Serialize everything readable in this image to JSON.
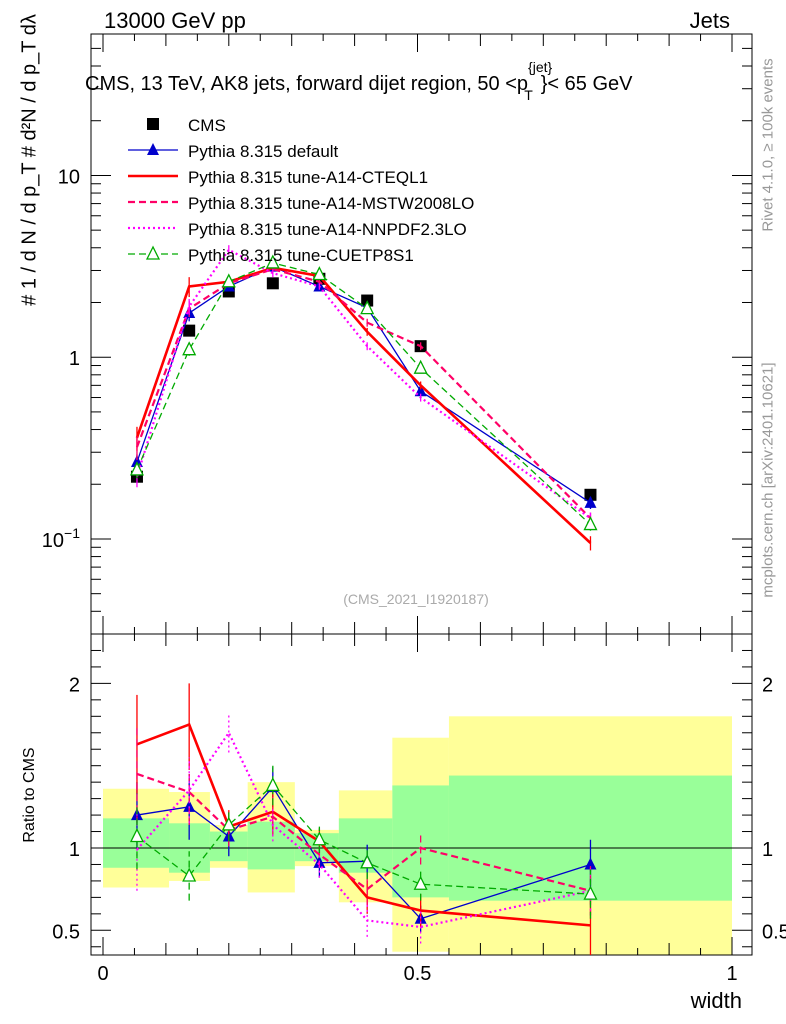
{
  "header": {
    "left": "13000 GeV pp",
    "right": "Jets"
  },
  "side_labels": {
    "rivet": "Rivet 4.1.0, ≥ 100k events",
    "mcplots": "mcplots.cern.ch [arXiv:2401.10621]"
  },
  "y_label_top": "#   1 / d N / d p_T   # d²N / d p_T dλ",
  "chart_data": {
    "type": "line",
    "title": "CMS, 13 TeV, AK8 jets, forward dijet region, 50 <p_T^{jet}< 65 GeV",
    "title_main": "CMS, 13 TeV, AK8 jets, forward dijet region, 50 <p",
    "title_sup": "{jet}",
    "title_sub": "T",
    "title_end": "}< 65 GeV",
    "analysis_id": "(CMS_2021_I1920187)",
    "xlabel": "width",
    "xlim": [
      0,
      1
    ],
    "ylim": [
      0.03,
      60
    ],
    "yscale": "log",
    "x_ticks": [
      {
        "v": 0,
        "label": "0"
      },
      {
        "v": 0.5,
        "label": "0.5"
      },
      {
        "v": 1,
        "label": "1"
      }
    ],
    "y_ticks": [
      {
        "v": 0.1,
        "base": "10",
        "exp": "−1"
      },
      {
        "v": 1,
        "base": "1",
        "exp": ""
      },
      {
        "v": 10,
        "base": "10",
        "exp": ""
      }
    ],
    "ratio": {
      "ylabel": "Ratio to CMS",
      "ylim": [
        0.35,
        2.3
      ],
      "ticks": [
        {
          "v": 0.5,
          "label": "0.5"
        },
        {
          "v": 1,
          "label": "1"
        },
        {
          "v": 2,
          "label": "2"
        }
      ],
      "bands": [
        {
          "x0": 0.0,
          "x1": 0.105,
          "y1lo": 0.88,
          "y1hi": 1.18,
          "y2lo": 0.76,
          "y2hi": 1.36
        },
        {
          "x0": 0.105,
          "x1": 0.17,
          "y1lo": 0.85,
          "y1hi": 1.15,
          "y2lo": 0.8,
          "y2hi": 1.34
        },
        {
          "x0": 0.17,
          "x1": 0.23,
          "y1lo": 0.92,
          "y1hi": 1.1,
          "y2lo": 0.88,
          "y2hi": 1.14
        },
        {
          "x0": 0.23,
          "x1": 0.305,
          "y1lo": 0.87,
          "y1hi": 1.16,
          "y2lo": 0.73,
          "y2hi": 1.4
        },
        {
          "x0": 0.305,
          "x1": 0.375,
          "y1lo": 0.92,
          "y1hi": 1.09,
          "y2lo": 0.89,
          "y2hi": 1.11
        },
        {
          "x0": 0.375,
          "x1": 0.46,
          "y1lo": 0.85,
          "y1hi": 1.18,
          "y2lo": 0.67,
          "y2hi": 1.35
        },
        {
          "x0": 0.46,
          "x1": 0.55,
          "y1lo": 0.7,
          "y1hi": 1.38,
          "y2lo": 0.37,
          "y2hi": 1.67
        },
        {
          "x0": 0.55,
          "x1": 1.0,
          "y1lo": 0.68,
          "y1hi": 1.44,
          "y2lo": 0.35,
          "y2hi": 1.8
        }
      ]
    },
    "series": [
      {
        "name": "CMS",
        "color": "#000000",
        "style": "none",
        "marker": "square",
        "x": [
          0.054,
          0.137,
          0.2,
          0.27,
          0.344,
          0.42,
          0.505,
          0.775
        ],
        "y": [
          0.22,
          1.4,
          2.3,
          2.55,
          2.7,
          2.05,
          1.15,
          0.175
        ],
        "ratio": [
          1,
          1,
          1,
          1,
          1,
          1,
          1,
          1
        ],
        "ratio_err": [
          0,
          0,
          0,
          0,
          0,
          0,
          0,
          0
        ]
      },
      {
        "name": "Pythia 8.315 default",
        "color": "#0000cc",
        "style": "solid",
        "width": 1.3,
        "marker": "triangle",
        "x": [
          0.054,
          0.137,
          0.2,
          0.27,
          0.344,
          0.42,
          0.505,
          0.775
        ],
        "y": [
          0.265,
          1.75,
          2.45,
          3.15,
          2.45,
          1.87,
          0.65,
          0.158
        ],
        "ratio": [
          1.2,
          1.25,
          1.07,
          1.37,
          0.91,
          0.92,
          0.57,
          0.9
        ],
        "ratio_err": [
          0.2,
          0.2,
          0.12,
          0.12,
          0.09,
          0.1,
          0.08,
          0.15
        ]
      },
      {
        "name": "Pythia 8.315 tune-A14-CTEQL1",
        "color": "#ff0000",
        "style": "solid",
        "width": 2.6,
        "marker": "none",
        "x": [
          0.054,
          0.137,
          0.2,
          0.27,
          0.344,
          0.42,
          0.505,
          0.775
        ],
        "y": [
          0.36,
          2.45,
          2.6,
          3.1,
          2.8,
          1.38,
          0.7,
          0.095
        ],
        "ratio": [
          1.63,
          1.75,
          1.13,
          1.22,
          1.04,
          0.7,
          0.62,
          0.53
        ],
        "ratio_err": [
          0.3,
          0.25,
          0.1,
          0.12,
          0.08,
          0.1,
          0.1,
          0.18
        ]
      },
      {
        "name": "Pythia 8.315 tune-A14-MSTW2008LO",
        "color": "#ff0066",
        "style": "dashed",
        "width": 2.2,
        "marker": "none",
        "x": [
          0.054,
          0.137,
          0.2,
          0.27,
          0.344,
          0.42,
          0.505,
          0.775
        ],
        "y": [
          0.32,
          1.85,
          2.55,
          3.05,
          2.6,
          1.55,
          1.15,
          0.13
        ],
        "ratio": [
          1.45,
          1.34,
          1.11,
          1.19,
          0.96,
          0.75,
          1.0,
          0.74
        ],
        "ratio_err": [
          0.3,
          0.2,
          0.1,
          0.12,
          0.08,
          0.1,
          0.1,
          0.15
        ]
      },
      {
        "name": "Pythia 8.315 tune-A14-NNPDF2.3LO",
        "color": "#ff00ff",
        "style": "dotted",
        "width": 2.2,
        "marker": "none",
        "x": [
          0.054,
          0.137,
          0.2,
          0.27,
          0.344,
          0.42,
          0.505,
          0.775
        ],
        "y": [
          0.22,
          1.9,
          3.9,
          2.9,
          2.45,
          1.15,
          0.6,
          0.13
        ],
        "ratio": [
          0.99,
          1.35,
          1.7,
          1.14,
          0.9,
          0.56,
          0.52,
          0.74
        ],
        "ratio_err": [
          0.25,
          0.2,
          0.12,
          0.1,
          0.08,
          0.1,
          0.1,
          0.15
        ]
      },
      {
        "name": "Pythia 8.315 tune-CUETP8S1",
        "color": "#00aa00",
        "style": "dashed",
        "width": 1.3,
        "marker": "triangle-open",
        "x": [
          0.054,
          0.137,
          0.2,
          0.27,
          0.344,
          0.42,
          0.505,
          0.775
        ],
        "y": [
          0.24,
          1.1,
          2.6,
          3.3,
          2.85,
          1.85,
          0.87,
          0.12
        ],
        "ratio": [
          1.07,
          0.83,
          1.14,
          1.38,
          1.05,
          0.91,
          0.78,
          0.72
        ],
        "ratio_err": [
          0.2,
          0.15,
          0.1,
          0.12,
          0.08,
          0.1,
          0.1,
          0.15
        ]
      }
    ]
  }
}
